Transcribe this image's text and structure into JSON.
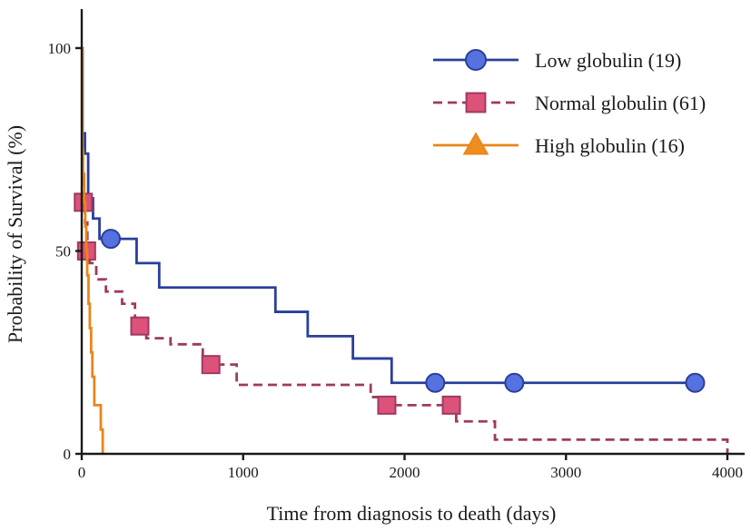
{
  "chart_data": {
    "type": "line",
    "subtype": "kaplan-meier-step",
    "title": "",
    "xlabel": "Time from diagnosis to death (days)",
    "ylabel": "Probability of Survival (%)",
    "xlim": [
      0,
      4000
    ],
    "ylim": [
      0,
      100
    ],
    "xticks": [
      0,
      1000,
      2000,
      3000,
      4000
    ],
    "yticks": [
      0,
      50,
      100
    ],
    "grid": false,
    "legend_position": "top-right",
    "series": [
      {
        "name": "Low globulin (19)",
        "color": "#2a3f99",
        "marker_fill": "#5572e0",
        "marker": "circle",
        "line_style": "solid",
        "steps": [
          [
            0,
            100
          ],
          [
            5,
            79
          ],
          [
            20,
            74
          ],
          [
            40,
            63
          ],
          [
            70,
            58
          ],
          [
            110,
            53
          ],
          [
            340,
            47
          ],
          [
            480,
            41
          ],
          [
            1200,
            35
          ],
          [
            1400,
            29
          ],
          [
            1680,
            23.5
          ],
          [
            1920,
            17.5
          ],
          [
            3800,
            17.5
          ]
        ],
        "censored": [
          [
            180,
            53
          ],
          [
            2190,
            17.5
          ],
          [
            2680,
            17.5
          ],
          [
            3800,
            17.5
          ]
        ]
      },
      {
        "name": "Normal globulin (61)",
        "color": "#9e3a62",
        "marker_fill": "#dd5278",
        "marker": "square",
        "line_style": "dashed",
        "steps": [
          [
            0,
            100
          ],
          [
            3,
            68
          ],
          [
            10,
            62
          ],
          [
            20,
            57
          ],
          [
            35,
            50
          ],
          [
            50,
            47
          ],
          [
            90,
            43
          ],
          [
            150,
            40
          ],
          [
            250,
            37
          ],
          [
            330,
            33
          ],
          [
            400,
            28.5
          ],
          [
            550,
            27
          ],
          [
            750,
            22
          ],
          [
            960,
            17
          ],
          [
            1790,
            14
          ],
          [
            1880,
            12
          ],
          [
            2320,
            8
          ],
          [
            2560,
            3.5
          ],
          [
            4000,
            3.5
          ],
          [
            4000,
            0
          ]
        ],
        "censored": [
          [
            10,
            62
          ],
          [
            30,
            50
          ],
          [
            360,
            31.5
          ],
          [
            800,
            22
          ],
          [
            1890,
            12
          ],
          [
            2290,
            12
          ]
        ]
      },
      {
        "name": "High globulin (16)",
        "color": "#e8861a",
        "marker_fill": "#f08c20",
        "marker": "triangle",
        "line_style": "solid",
        "steps": [
          [
            0,
            100
          ],
          [
            4,
            75
          ],
          [
            8,
            69
          ],
          [
            15,
            62
          ],
          [
            22,
            56
          ],
          [
            28,
            50
          ],
          [
            34,
            44
          ],
          [
            42,
            37
          ],
          [
            50,
            31
          ],
          [
            58,
            25
          ],
          [
            66,
            19
          ],
          [
            78,
            12
          ],
          [
            118,
            6
          ],
          [
            130,
            0
          ]
        ],
        "censored": []
      }
    ]
  }
}
